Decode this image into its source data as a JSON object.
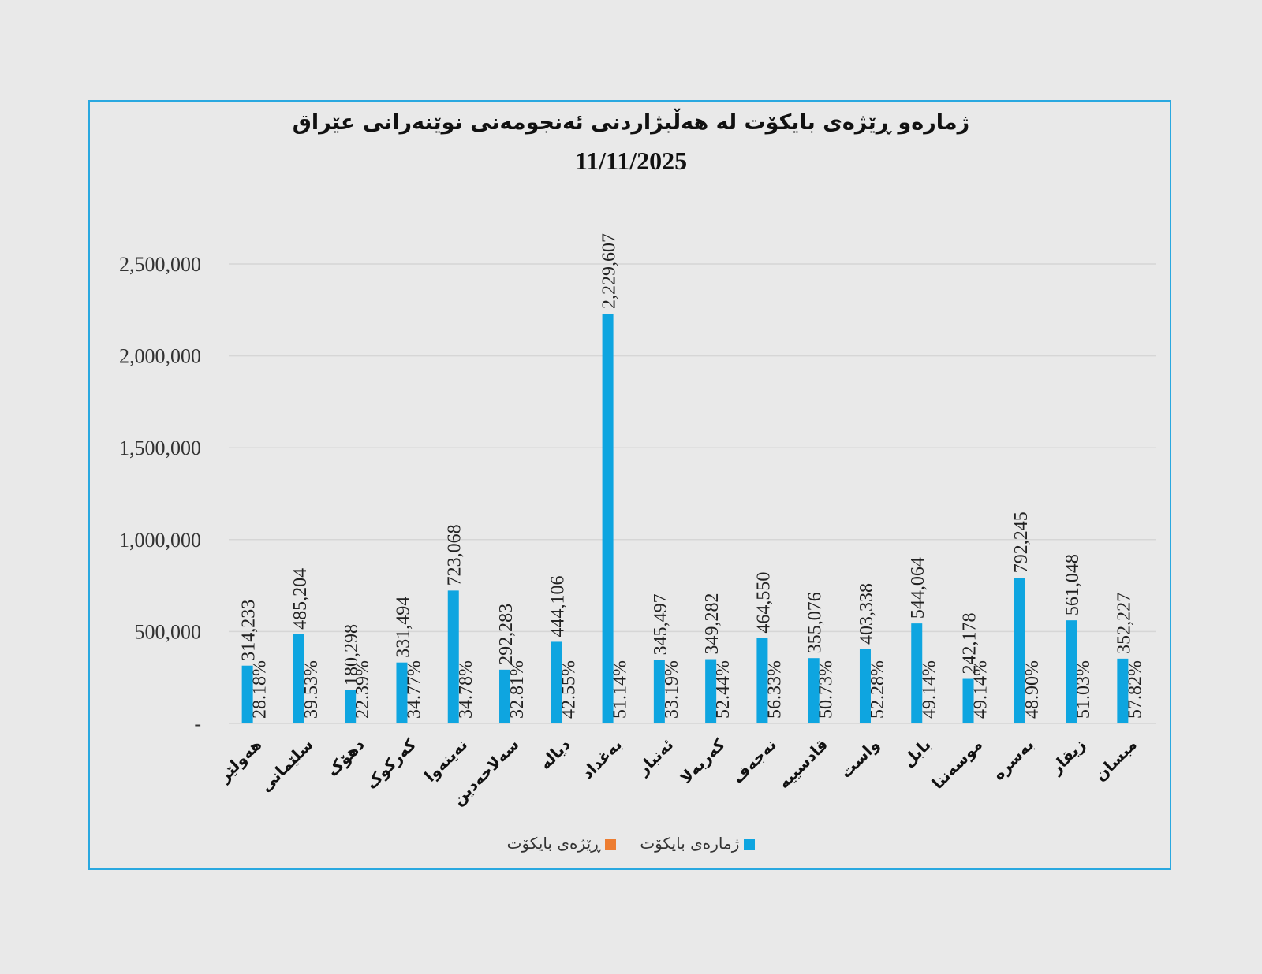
{
  "chart_data": {
    "type": "bar",
    "title": "ژمارەو ڕێژەی بایکۆت لە هەڵبژاردنی ئەنجومەنی نوێنەرانی عێراق",
    "subtitle": "11/11/2025",
    "categories": [
      "هەولێر",
      "سلێمانی",
      "دهۆک",
      "کەرکوک",
      "نەینەوا",
      "سەلاحەدین",
      "دیالە",
      "بەغداد",
      "ئەنبار",
      "کەربەلا",
      "نەجەف",
      "قادسییە",
      "واست",
      "بابل",
      "موسەننا",
      "بەسرە",
      "زیقار",
      "میسان"
    ],
    "series": [
      {
        "name": "ژمارەی بایکۆت",
        "color": "#0ea5e0",
        "values": [
          314233,
          485204,
          180298,
          331494,
          723068,
          292283,
          444106,
          2229607,
          345497,
          349282,
          464550,
          355076,
          403338,
          544064,
          242178,
          792245,
          561048,
          352227
        ],
        "labels": [
          "314,233",
          "485,204",
          "180,298",
          "331,494",
          "723,068",
          "292,283",
          "444,106",
          "2,229,607",
          "345,497",
          "349,282",
          "464,550",
          "355,076",
          "403,338",
          "544,064",
          "242,178",
          "792,245",
          "561,048",
          "352,227"
        ]
      },
      {
        "name": "ڕێژەی بایکۆت",
        "color": "#ed7d31",
        "values": [
          28.18,
          39.53,
          22.39,
          34.77,
          34.78,
          32.81,
          42.55,
          51.14,
          33.19,
          52.44,
          56.33,
          50.73,
          52.28,
          49.14,
          49.14,
          48.9,
          51.03,
          57.82
        ],
        "labels": [
          "28.18%",
          "39.53%",
          "22.39%",
          "34.77%",
          "34.78%",
          "32.81%",
          "42.55%",
          "51.14%",
          "33.19%",
          "52.44%",
          "56.33%",
          "50.73%",
          "52.28%",
          "49.14%",
          "49.14%",
          "48.90%",
          "51.03%",
          "57.82%"
        ]
      }
    ],
    "ylim": [
      0,
      2500000
    ],
    "yticks": [
      0,
      500000,
      1000000,
      1500000,
      2000000,
      2500000
    ],
    "ytick_labels": [
      "-",
      "500,000",
      "1,000,000",
      "1,500,000",
      "2,000,000",
      "2,500,000"
    ],
    "grid": true,
    "legend_position": "bottom"
  }
}
